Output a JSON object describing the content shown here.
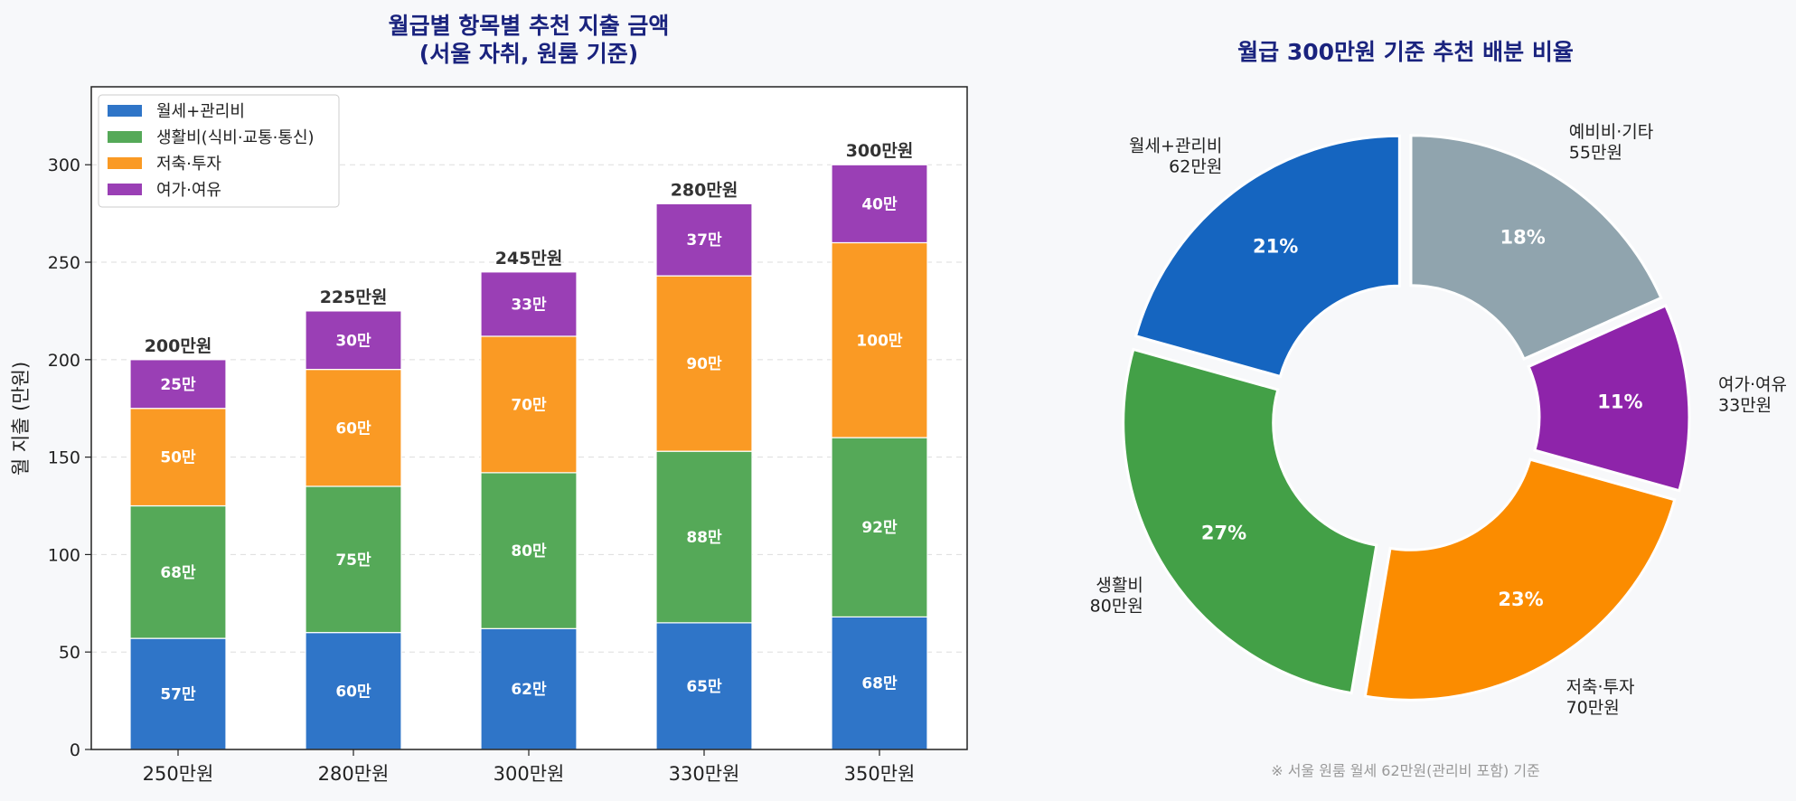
{
  "colors": {
    "background": "#f7f8fa",
    "title": "#1a237e",
    "rent": "#2f75c8",
    "living": "#55a958",
    "saving": "#fa9a24",
    "leisure": "#9a3fb5",
    "pie_rent": "#1565c0",
    "pie_living": "#43a047",
    "pie_saving": "#fb8c00",
    "pie_leisure": "#8e24aa",
    "pie_other": "#90a4ae"
  },
  "chart_data": [
    {
      "type": "bar",
      "stacked": true,
      "title": "월급별 항목별 추천 지출 금액",
      "subtitle": "(서울 자취, 원룸 기준)",
      "xlabel": "",
      "ylabel": "월 지출 (만원)",
      "categories": [
        "250만원",
        "280만원",
        "300만원",
        "330만원",
        "350만원"
      ],
      "ylim": [
        0,
        340
      ],
      "yticks": [
        0,
        50,
        100,
        150,
        200,
        250,
        300
      ],
      "grid": true,
      "legend_position": "top-left",
      "series": [
        {
          "name": "월세+관리비",
          "color_key": "rent",
          "values": [
            57,
            60,
            62,
            65,
            68
          ],
          "labels": [
            "57만",
            "60만",
            "62만",
            "65만",
            "68만"
          ]
        },
        {
          "name": "생활비(식비·교통·통신)",
          "color_key": "living",
          "values": [
            68,
            75,
            80,
            88,
            92
          ],
          "labels": [
            "68만",
            "75만",
            "80만",
            "88만",
            "92만"
          ]
        },
        {
          "name": "저축·투자",
          "color_key": "saving",
          "values": [
            50,
            60,
            70,
            90,
            100
          ],
          "labels": [
            "50만",
            "60만",
            "70만",
            "90만",
            "100만"
          ]
        },
        {
          "name": "여가·여유",
          "color_key": "leisure",
          "values": [
            25,
            30,
            33,
            37,
            40
          ],
          "labels": [
            "25만",
            "30만",
            "33만",
            "37만",
            "40만"
          ]
        }
      ],
      "totals": [
        200,
        225,
        245,
        280,
        300
      ],
      "total_labels": [
        "200만원",
        "225만원",
        "245만원",
        "280만원",
        "300만원"
      ]
    },
    {
      "type": "pie",
      "donut": true,
      "title": "월급 300만원 기준 추천 배분 비율",
      "slices": [
        {
          "label": "월세+관리비",
          "amount": "62만원",
          "value": 62,
          "percent_label": "21%",
          "color_key": "pie_rent"
        },
        {
          "label": "생활비",
          "amount": "80만원",
          "value": 80,
          "percent_label": "27%",
          "color_key": "pie_living"
        },
        {
          "label": "저축·투자",
          "amount": "70만원",
          "value": 70,
          "percent_label": "23%",
          "color_key": "pie_saving"
        },
        {
          "label": "여가·여유",
          "amount": "33만원",
          "value": 33,
          "percent_label": "11%",
          "color_key": "pie_leisure"
        },
        {
          "label": "예비비·기타",
          "amount": "55만원",
          "value": 55,
          "percent_label": "18%",
          "color_key": "pie_other"
        }
      ],
      "footnote": "※ 서울 원룸 월세 62만원(관리비 포함) 기준"
    }
  ]
}
